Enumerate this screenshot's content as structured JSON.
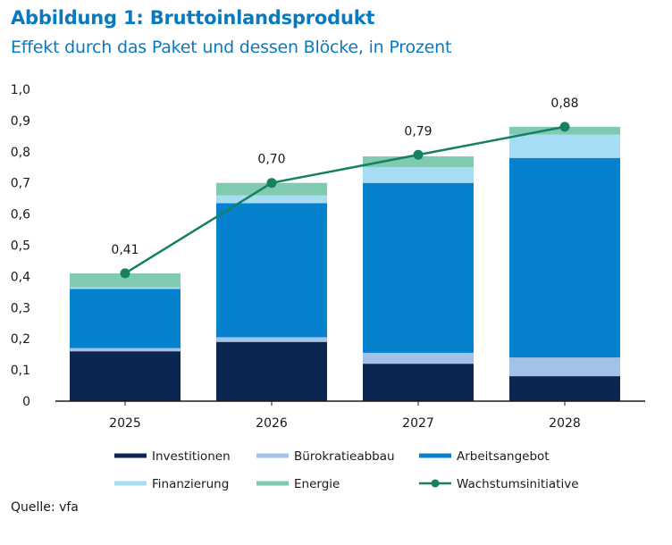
{
  "header": {
    "title": "Abbildung 1: Bruttoinlandsprodukt",
    "subtitle": "Effekt durch das Paket und dessen Blöcke, in Prozent"
  },
  "source": "Quelle: vfa",
  "colors": {
    "Investitionen": "#0b2650",
    "Bürokratieabbau": "#a3c2e8",
    "Arbeitsangebot": "#0581cd",
    "Finanzierung": "#a6dcf4",
    "Energie": "#7fcab1",
    "Wachstumsinitiative": "#168063",
    "axis": "#1a1a1a"
  },
  "chart_data": {
    "type": "bar",
    "stacked": true,
    "title": "Abbildung 1: Bruttoinlandsprodukt",
    "subtitle": "Effekt durch das Paket und dessen Blöcke, in Prozent",
    "categories": [
      "2025",
      "2026",
      "2027",
      "2028"
    ],
    "ylim": [
      0,
      1.0
    ],
    "yticks": [
      "0",
      "0,1",
      "0,2",
      "0,3",
      "0,4",
      "0,5",
      "0,6",
      "0,7",
      "0,8",
      "0,9",
      "1,0"
    ],
    "ytick_values": [
      0,
      0.1,
      0.2,
      0.3,
      0.4,
      0.5,
      0.6,
      0.7,
      0.8,
      0.9,
      1.0
    ],
    "series": [
      {
        "name": "Investitionen",
        "values": [
          0.16,
          0.19,
          0.12,
          0.08
        ]
      },
      {
        "name": "Bürokratieabbau",
        "values": [
          0.01,
          0.015,
          0.035,
          0.06
        ]
      },
      {
        "name": "Arbeitsangebot",
        "values": [
          0.19,
          0.43,
          0.545,
          0.64
        ]
      },
      {
        "name": "Finanzierung",
        "values": [
          0.005,
          0.025,
          0.05,
          0.075
        ]
      },
      {
        "name": "Energie",
        "values": [
          0.045,
          0.04,
          0.035,
          0.025
        ]
      }
    ],
    "line": {
      "name": "Wachstumsinitiative",
      "values": [
        0.41,
        0.7,
        0.79,
        0.88
      ],
      "labels": [
        "0,41",
        "0,70",
        "0,79",
        "0,88"
      ]
    },
    "legend": [
      "Investitionen",
      "Bürokratieabbau",
      "Arbeitsangebot",
      "Finanzierung",
      "Energie",
      "Wachstumsinitiative"
    ],
    "legend_position": "bottom"
  }
}
